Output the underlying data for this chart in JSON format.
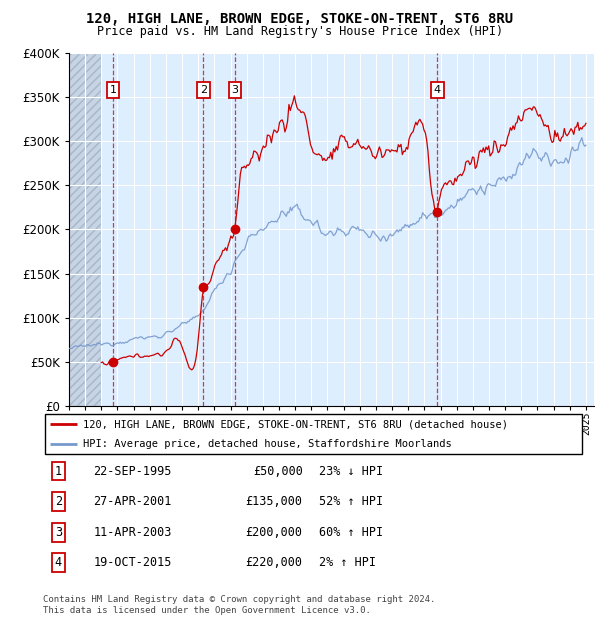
{
  "title": "120, HIGH LANE, BROWN EDGE, STOKE-ON-TRENT, ST6 8RU",
  "subtitle": "Price paid vs. HM Land Registry's House Price Index (HPI)",
  "sales": [
    {
      "year": 1995.73,
      "price": 50000,
      "label": "1"
    },
    {
      "year": 2001.32,
      "price": 135000,
      "label": "2"
    },
    {
      "year": 2003.27,
      "price": 200000,
      "label": "3"
    },
    {
      "year": 2015.8,
      "price": 220000,
      "label": "4"
    }
  ],
  "transactions": [
    {
      "num": "1",
      "date": "22-SEP-1995",
      "price": "£50,000",
      "hpi": "23% ↓ HPI"
    },
    {
      "num": "2",
      "date": "27-APR-2001",
      "price": "£135,000",
      "hpi": "52% ↑ HPI"
    },
    {
      "num": "3",
      "date": "11-APR-2003",
      "price": "£200,000",
      "hpi": "60% ↑ HPI"
    },
    {
      "num": "4",
      "date": "19-OCT-2015",
      "price": "£220,000",
      "hpi": "2% ↑ HPI"
    }
  ],
  "legend1": "120, HIGH LANE, BROWN EDGE, STOKE-ON-TRENT, ST6 8RU (detached house)",
  "legend2": "HPI: Average price, detached house, Staffordshire Moorlands",
  "footer": "Contains HM Land Registry data © Crown copyright and database right 2024.\nThis data is licensed under the Open Government Licence v3.0.",
  "ylim": [
    0,
    400000
  ],
  "xlim_start": 1993.0,
  "xlim_end": 2025.5,
  "hatch_end": 1995.0,
  "price_line_color": "#cc0000",
  "hpi_line_color": "#7799cc",
  "marker_color": "#cc0000",
  "box_edge_color": "#cc0000",
  "dashed_color": "#cc0000",
  "bg_color": "#ddeeff",
  "hatch_color": "#b8c4d4"
}
